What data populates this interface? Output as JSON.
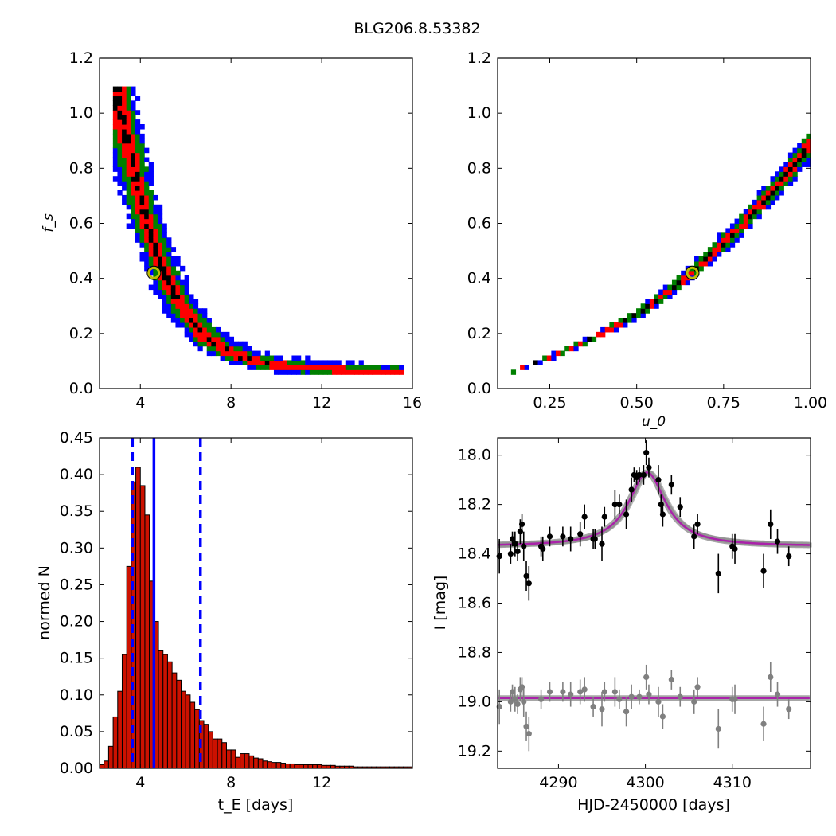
{
  "figure": {
    "title": "BLG206.8.53382"
  },
  "colors": {
    "sigma3": "#0000ff",
    "sigma2": "#008000",
    "sigma1": "#ff0000",
    "core": "#000000",
    "best_fit": "#bfbf00",
    "hist_bar": "#cc1100",
    "model": "#aa22aa",
    "model_band": "#888888",
    "data_black": "#000000",
    "data_gray": "#808080"
  },
  "chart_data": [
    {
      "type": "heatmap",
      "title": "",
      "xlabel": "",
      "ylabel": "f_s",
      "xlim": [
        2.2,
        16
      ],
      "ylim": [
        0,
        1.2
      ],
      "xticks": [
        4,
        8,
        12,
        16
      ],
      "yticks": [
        0.0,
        0.2,
        0.4,
        0.6,
        0.8,
        1.0,
        1.2
      ],
      "best_fit": {
        "x": 4.6,
        "y": 0.42
      },
      "contour_levels": [
        "3-sigma",
        "2-sigma",
        "1-sigma",
        "core"
      ],
      "curve": {
        "x": [
          3.0,
          3.3,
          3.6,
          4.0,
          4.5,
          5.0,
          5.6,
          6.2,
          7.0,
          8.0,
          9.0,
          10.5,
          12.0,
          13.5,
          15.5
        ],
        "y": [
          1.07,
          0.95,
          0.83,
          0.7,
          0.54,
          0.43,
          0.33,
          0.25,
          0.18,
          0.13,
          0.1,
          0.08,
          0.07,
          0.065,
          0.06
        ]
      },
      "widths_sigma": [
        0.14,
        0.24,
        0.38
      ]
    },
    {
      "type": "heatmap",
      "title": "",
      "xlabel": "u_0",
      "ylabel": "",
      "xlim": [
        0.1,
        1.0
      ],
      "ylim": [
        0,
        1.2
      ],
      "xticks": [
        0.25,
        0.5,
        0.75,
        1.0
      ],
      "yticks": [
        0.0,
        0.2,
        0.4,
        0.6,
        0.8,
        1.0,
        1.2
      ],
      "best_fit": {
        "x": 0.66,
        "y": 0.42
      },
      "contour_levels": [
        "3-sigma",
        "2-sigma",
        "1-sigma",
        "core"
      ],
      "curve": {
        "x": [
          0.14,
          0.2,
          0.3,
          0.4,
          0.5,
          0.6,
          0.7,
          0.8,
          0.9,
          1.0
        ],
        "y": [
          0.06,
          0.09,
          0.14,
          0.2,
          0.27,
          0.36,
          0.47,
          0.59,
          0.73,
          0.89
        ]
      },
      "widths_sigma": [
        0.028,
        0.05,
        0.075
      ]
    },
    {
      "type": "bar",
      "title": "",
      "xlabel": "t_E [days]",
      "ylabel": "normed N",
      "xlim": [
        2.2,
        16
      ],
      "ylim": [
        0,
        0.45
      ],
      "xticks": [
        4,
        8,
        12
      ],
      "yticks": [
        0.0,
        0.05,
        0.1,
        0.15,
        0.2,
        0.25,
        0.3,
        0.35,
        0.4,
        0.45
      ],
      "bin_start": 2.2,
      "bin_width": 0.2,
      "values": [
        0.005,
        0.01,
        0.03,
        0.07,
        0.105,
        0.155,
        0.275,
        0.39,
        0.41,
        0.385,
        0.345,
        0.255,
        0.2,
        0.16,
        0.155,
        0.145,
        0.13,
        0.12,
        0.105,
        0.1,
        0.09,
        0.08,
        0.065,
        0.06,
        0.05,
        0.04,
        0.04,
        0.035,
        0.025,
        0.025,
        0.015,
        0.02,
        0.02,
        0.017,
        0.014,
        0.013,
        0.01,
        0.009,
        0.008,
        0.008,
        0.007,
        0.006,
        0.006,
        0.005,
        0.005,
        0.005,
        0.005,
        0.005,
        0.005,
        0.004,
        0.004,
        0.004,
        0.003,
        0.003,
        0.003,
        0.003,
        0.002,
        0.002,
        0.002,
        0.002,
        0.002,
        0.002,
        0.002,
        0.002,
        0.002,
        0.002,
        0.002,
        0.002,
        0.002
      ],
      "vlines": [
        {
          "x": 3.65,
          "style": "dashed"
        },
        {
          "x": 4.6,
          "style": "solid"
        },
        {
          "x": 6.65,
          "style": "dashed"
        }
      ]
    },
    {
      "type": "scatter",
      "title": "",
      "xlabel": "HJD-2450000 [days]",
      "ylabel": "I [mag]",
      "xlim": [
        4283,
        4319
      ],
      "ylim": [
        19.27,
        17.93
      ],
      "xticks": [
        4290,
        4300,
        4310
      ],
      "yticks": [
        18.0,
        18.2,
        18.4,
        18.6,
        18.8,
        19.0,
        19.2
      ],
      "model": {
        "baseline": 18.37,
        "peak_t": 4300.2,
        "amplitude": 0.3,
        "width": 2.6,
        "residual_baseline": 18.985
      },
      "points": [
        {
          "x": 4283.2,
          "y": 18.41,
          "e": 0.07
        },
        {
          "x": 4284.5,
          "y": 18.4,
          "e": 0.04
        },
        {
          "x": 4284.7,
          "y": 18.34,
          "e": 0.03
        },
        {
          "x": 4285.0,
          "y": 18.36,
          "e": 0.05
        },
        {
          "x": 4285.3,
          "y": 18.39,
          "e": 0.04
        },
        {
          "x": 4285.6,
          "y": 18.31,
          "e": 0.05
        },
        {
          "x": 4285.8,
          "y": 18.28,
          "e": 0.04
        },
        {
          "x": 4286.0,
          "y": 18.37,
          "e": 0.06
        },
        {
          "x": 4286.3,
          "y": 18.49,
          "e": 0.06
        },
        {
          "x": 4286.6,
          "y": 18.52,
          "e": 0.07
        },
        {
          "x": 4288.0,
          "y": 18.37,
          "e": 0.04
        },
        {
          "x": 4288.2,
          "y": 18.38,
          "e": 0.05
        },
        {
          "x": 4289.0,
          "y": 18.33,
          "e": 0.04
        },
        {
          "x": 4290.5,
          "y": 18.33,
          "e": 0.04
        },
        {
          "x": 4291.4,
          "y": 18.34,
          "e": 0.05
        },
        {
          "x": 4292.5,
          "y": 18.32,
          "e": 0.05
        },
        {
          "x": 4293.0,
          "y": 18.25,
          "e": 0.05
        },
        {
          "x": 4294.0,
          "y": 18.34,
          "e": 0.04
        },
        {
          "x": 4294.2,
          "y": 18.34,
          "e": 0.04
        },
        {
          "x": 4295.0,
          "y": 18.36,
          "e": 0.07
        },
        {
          "x": 4295.3,
          "y": 18.25,
          "e": 0.04
        },
        {
          "x": 4296.5,
          "y": 18.2,
          "e": 0.06
        },
        {
          "x": 4297.0,
          "y": 18.2,
          "e": 0.04
        },
        {
          "x": 4297.8,
          "y": 18.24,
          "e": 0.06
        },
        {
          "x": 4298.4,
          "y": 18.14,
          "e": 0.05
        },
        {
          "x": 4298.7,
          "y": 18.08,
          "e": 0.03
        },
        {
          "x": 4299.0,
          "y": 18.09,
          "e": 0.03
        },
        {
          "x": 4299.3,
          "y": 18.08,
          "e": 0.03
        },
        {
          "x": 4299.8,
          "y": 18.08,
          "e": 0.04
        },
        {
          "x": 4300.1,
          "y": 17.99,
          "e": 0.05
        },
        {
          "x": 4300.4,
          "y": 18.05,
          "e": 0.04
        },
        {
          "x": 4301.5,
          "y": 18.1,
          "e": 0.06
        },
        {
          "x": 4301.8,
          "y": 18.2,
          "e": 0.04
        },
        {
          "x": 4302.0,
          "y": 18.24,
          "e": 0.05
        },
        {
          "x": 4303.0,
          "y": 18.12,
          "e": 0.04
        },
        {
          "x": 4304.0,
          "y": 18.21,
          "e": 0.04
        },
        {
          "x": 4305.6,
          "y": 18.33,
          "e": 0.05
        },
        {
          "x": 4306.0,
          "y": 18.28,
          "e": 0.04
        },
        {
          "x": 4308.4,
          "y": 18.48,
          "e": 0.08
        },
        {
          "x": 4310.0,
          "y": 18.37,
          "e": 0.05
        },
        {
          "x": 4310.3,
          "y": 18.38,
          "e": 0.06
        },
        {
          "x": 4313.6,
          "y": 18.47,
          "e": 0.07
        },
        {
          "x": 4314.4,
          "y": 18.28,
          "e": 0.06
        },
        {
          "x": 4315.2,
          "y": 18.35,
          "e": 0.05
        },
        {
          "x": 4316.5,
          "y": 18.41,
          "e": 0.04
        }
      ],
      "residuals": [
        {
          "x": 4283.2,
          "y": 19.02,
          "e": 0.07
        },
        {
          "x": 4284.5,
          "y": 19.0,
          "e": 0.04
        },
        {
          "x": 4284.7,
          "y": 18.96,
          "e": 0.03
        },
        {
          "x": 4285.0,
          "y": 18.99,
          "e": 0.05
        },
        {
          "x": 4285.3,
          "y": 19.01,
          "e": 0.04
        },
        {
          "x": 4285.6,
          "y": 18.95,
          "e": 0.05
        },
        {
          "x": 4285.8,
          "y": 18.94,
          "e": 0.04
        },
        {
          "x": 4286.0,
          "y": 19.0,
          "e": 0.06
        },
        {
          "x": 4286.3,
          "y": 19.1,
          "e": 0.06
        },
        {
          "x": 4286.6,
          "y": 19.13,
          "e": 0.07
        },
        {
          "x": 4288.0,
          "y": 18.99,
          "e": 0.04
        },
        {
          "x": 4289.0,
          "y": 18.96,
          "e": 0.04
        },
        {
          "x": 4290.5,
          "y": 18.96,
          "e": 0.04
        },
        {
          "x": 4291.4,
          "y": 18.97,
          "e": 0.05
        },
        {
          "x": 4292.5,
          "y": 18.96,
          "e": 0.05
        },
        {
          "x": 4293.0,
          "y": 18.95,
          "e": 0.05
        },
        {
          "x": 4294.0,
          "y": 19.02,
          "e": 0.04
        },
        {
          "x": 4295.0,
          "y": 19.03,
          "e": 0.07
        },
        {
          "x": 4295.3,
          "y": 18.96,
          "e": 0.04
        },
        {
          "x": 4296.5,
          "y": 18.96,
          "e": 0.06
        },
        {
          "x": 4297.0,
          "y": 18.99,
          "e": 0.04
        },
        {
          "x": 4297.8,
          "y": 19.04,
          "e": 0.06
        },
        {
          "x": 4298.4,
          "y": 18.98,
          "e": 0.05
        },
        {
          "x": 4299.3,
          "y": 18.98,
          "e": 0.03
        },
        {
          "x": 4300.1,
          "y": 18.9,
          "e": 0.05
        },
        {
          "x": 4300.4,
          "y": 18.97,
          "e": 0.04
        },
        {
          "x": 4301.5,
          "y": 19.0,
          "e": 0.06
        },
        {
          "x": 4302.0,
          "y": 19.06,
          "e": 0.05
        },
        {
          "x": 4303.0,
          "y": 18.91,
          "e": 0.04
        },
        {
          "x": 4304.0,
          "y": 18.98,
          "e": 0.04
        },
        {
          "x": 4305.6,
          "y": 19.0,
          "e": 0.05
        },
        {
          "x": 4306.0,
          "y": 18.94,
          "e": 0.04
        },
        {
          "x": 4308.4,
          "y": 19.11,
          "e": 0.08
        },
        {
          "x": 4310.0,
          "y": 18.99,
          "e": 0.05
        },
        {
          "x": 4310.3,
          "y": 18.99,
          "e": 0.06
        },
        {
          "x": 4313.6,
          "y": 19.09,
          "e": 0.07
        },
        {
          "x": 4314.4,
          "y": 18.9,
          "e": 0.06
        },
        {
          "x": 4315.2,
          "y": 18.97,
          "e": 0.05
        },
        {
          "x": 4316.5,
          "y": 19.03,
          "e": 0.04
        }
      ]
    }
  ]
}
